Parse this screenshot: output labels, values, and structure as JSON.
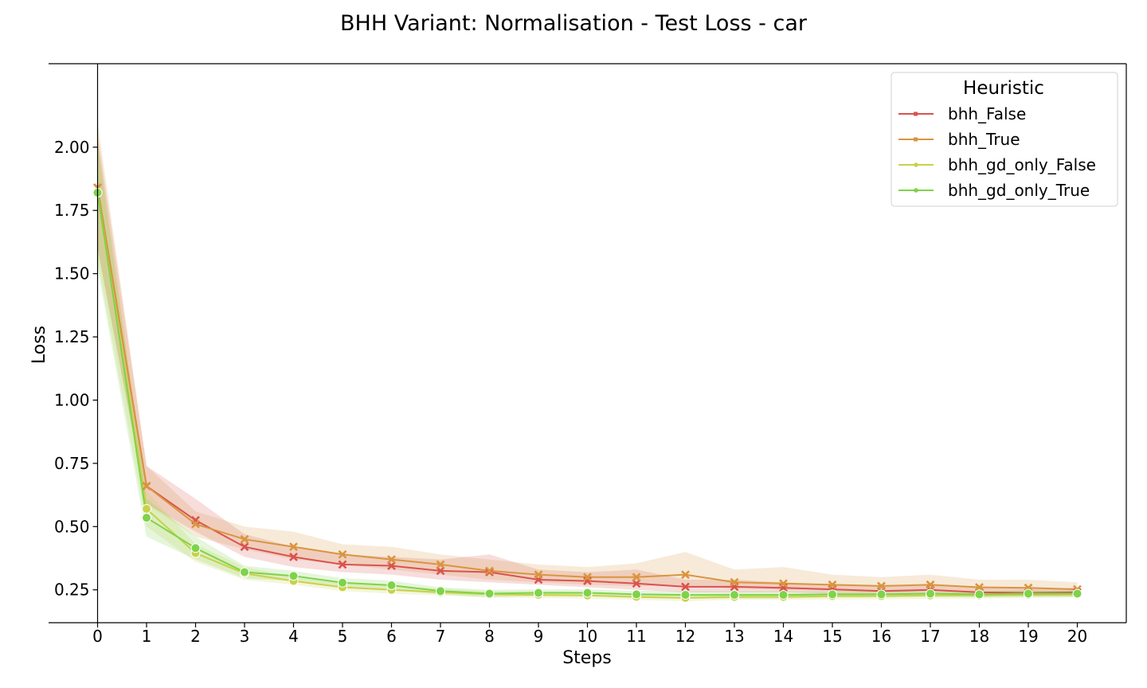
{
  "chart_data": {
    "type": "line",
    "title": "BHH Variant: Normalisation - Test Loss - car",
    "xlabel": "Steps",
    "ylabel": "Loss",
    "x": [
      0,
      1,
      2,
      3,
      4,
      5,
      6,
      7,
      8,
      9,
      10,
      11,
      12,
      13,
      14,
      15,
      16,
      17,
      18,
      19,
      20
    ],
    "xticks": [
      "0",
      "1",
      "2",
      "3",
      "4",
      "5",
      "6",
      "7",
      "8",
      "9",
      "10",
      "11",
      "12",
      "13",
      "14",
      "15",
      "16",
      "17",
      "18",
      "19",
      "20"
    ],
    "yticks": [
      "0.25",
      "0.50",
      "0.75",
      "1.00",
      "1.25",
      "1.50",
      "1.75",
      "2.00"
    ],
    "yticks_values": [
      0.25,
      0.5,
      0.75,
      1.0,
      1.25,
      1.5,
      1.75,
      2.0
    ],
    "xlim": [
      -1,
      21
    ],
    "ylim": [
      0.12,
      2.33
    ],
    "grid": false,
    "legend": {
      "title": "Heuristic",
      "placement": "top-right"
    },
    "series": [
      {
        "name": "bhh_False",
        "color": "#d9534f",
        "marker": "x",
        "values": [
          1.84,
          0.66,
          0.525,
          0.42,
          0.38,
          0.35,
          0.345,
          0.325,
          0.32,
          0.29,
          0.285,
          0.275,
          0.262,
          0.262,
          0.258,
          0.252,
          0.245,
          0.25,
          0.24,
          0.238,
          0.24
        ],
        "lower": [
          1.6,
          0.59,
          0.48,
          0.38,
          0.34,
          0.32,
          0.31,
          0.29,
          0.28,
          0.27,
          0.26,
          0.25,
          0.24,
          0.24,
          0.24,
          0.235,
          0.23,
          0.235,
          0.225,
          0.225,
          0.225
        ],
        "upper": [
          2.05,
          0.74,
          0.61,
          0.47,
          0.42,
          0.39,
          0.38,
          0.37,
          0.39,
          0.33,
          0.32,
          0.33,
          0.29,
          0.29,
          0.28,
          0.27,
          0.265,
          0.27,
          0.26,
          0.255,
          0.258
        ]
      },
      {
        "name": "bhh_True",
        "color": "#d9953f",
        "marker": "x",
        "values": [
          1.84,
          0.66,
          0.51,
          0.45,
          0.42,
          0.39,
          0.37,
          0.35,
          0.325,
          0.31,
          0.3,
          0.3,
          0.31,
          0.28,
          0.275,
          0.27,
          0.265,
          0.27,
          0.26,
          0.258,
          0.252
        ],
        "lower": [
          1.6,
          0.59,
          0.46,
          0.41,
          0.37,
          0.35,
          0.33,
          0.31,
          0.29,
          0.28,
          0.27,
          0.265,
          0.265,
          0.255,
          0.25,
          0.245,
          0.24,
          0.245,
          0.24,
          0.24,
          0.235
        ],
        "upper": [
          2.1,
          0.74,
          0.56,
          0.5,
          0.48,
          0.43,
          0.42,
          0.39,
          0.37,
          0.35,
          0.34,
          0.355,
          0.4,
          0.33,
          0.34,
          0.31,
          0.3,
          0.31,
          0.29,
          0.29,
          0.28
        ]
      },
      {
        "name": "bhh_gd_only_False",
        "color": "#c9d14a",
        "marker": "o",
        "values": [
          1.82,
          0.57,
          0.395,
          0.315,
          0.285,
          0.26,
          0.25,
          0.24,
          0.232,
          0.23,
          0.228,
          0.222,
          0.218,
          0.222,
          0.222,
          0.225,
          0.225,
          0.228,
          0.228,
          0.23,
          0.232
        ],
        "lower": [
          1.55,
          0.5,
          0.36,
          0.29,
          0.27,
          0.245,
          0.235,
          0.228,
          0.22,
          0.218,
          0.215,
          0.21,
          0.205,
          0.21,
          0.21,
          0.212,
          0.212,
          0.215,
          0.215,
          0.218,
          0.22
        ],
        "upper": [
          2.02,
          0.64,
          0.43,
          0.34,
          0.3,
          0.275,
          0.265,
          0.255,
          0.245,
          0.244,
          0.242,
          0.236,
          0.232,
          0.236,
          0.236,
          0.238,
          0.238,
          0.24,
          0.24,
          0.243,
          0.245
        ]
      },
      {
        "name": "bhh_gd_only_True",
        "color": "#7ed34a",
        "marker": "o",
        "values": [
          1.82,
          0.535,
          0.415,
          0.32,
          0.305,
          0.278,
          0.268,
          0.245,
          0.235,
          0.238,
          0.238,
          0.232,
          0.23,
          0.23,
          0.23,
          0.232,
          0.232,
          0.235,
          0.232,
          0.235,
          0.235
        ],
        "lower": [
          1.52,
          0.46,
          0.37,
          0.295,
          0.285,
          0.26,
          0.25,
          0.232,
          0.22,
          0.225,
          0.225,
          0.218,
          0.215,
          0.215,
          0.215,
          0.22,
          0.22,
          0.222,
          0.22,
          0.222,
          0.222
        ],
        "upper": [
          2.02,
          0.61,
          0.46,
          0.345,
          0.325,
          0.296,
          0.286,
          0.26,
          0.25,
          0.252,
          0.252,
          0.246,
          0.245,
          0.245,
          0.245,
          0.245,
          0.245,
          0.248,
          0.245,
          0.248,
          0.248
        ]
      }
    ]
  }
}
